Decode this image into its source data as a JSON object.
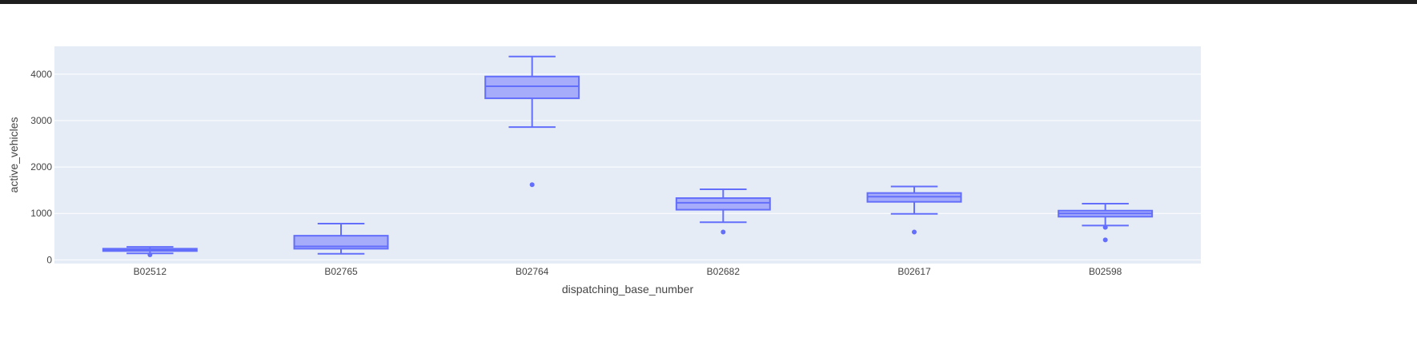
{
  "chart_data": {
    "type": "box",
    "xlabel": "dispatching_base_number",
    "ylabel": "active_vehicles",
    "categories": [
      "B02512",
      "B02765",
      "B02764",
      "B02682",
      "B02617",
      "B02598"
    ],
    "ylim": [
      -80,
      4600
    ],
    "yticks": [
      0,
      1000,
      2000,
      3000,
      4000
    ],
    "yticklabels": [
      "0",
      "1000",
      "2000",
      "3000",
      "4000"
    ],
    "grid": true,
    "colors": {
      "plot_bg": "#e5ecf6",
      "grid": "#ffffff",
      "box_line": "#636efa",
      "box_fill": "#a6acf9"
    },
    "boxes": [
      {
        "category": "B02512",
        "lower_whisker": 140,
        "q1": 190,
        "median": 215,
        "q3": 240,
        "upper_whisker": 280,
        "outliers": [
          110
        ]
      },
      {
        "category": "B02765",
        "lower_whisker": 130,
        "q1": 240,
        "median": 290,
        "q3": 520,
        "upper_whisker": 780,
        "outliers": []
      },
      {
        "category": "B02764",
        "lower_whisker": 2860,
        "q1": 3480,
        "median": 3740,
        "q3": 3950,
        "upper_whisker": 4380,
        "outliers": [
          1620
        ]
      },
      {
        "category": "B02682",
        "lower_whisker": 810,
        "q1": 1080,
        "median": 1230,
        "q3": 1330,
        "upper_whisker": 1520,
        "outliers": [
          600
        ]
      },
      {
        "category": "B02617",
        "lower_whisker": 990,
        "q1": 1250,
        "median": 1360,
        "q3": 1440,
        "upper_whisker": 1580,
        "outliers": [
          600
        ]
      },
      {
        "category": "B02598",
        "lower_whisker": 740,
        "q1": 930,
        "median": 1000,
        "q3": 1060,
        "upper_whisker": 1210,
        "outliers": [
          700,
          430
        ]
      }
    ]
  }
}
